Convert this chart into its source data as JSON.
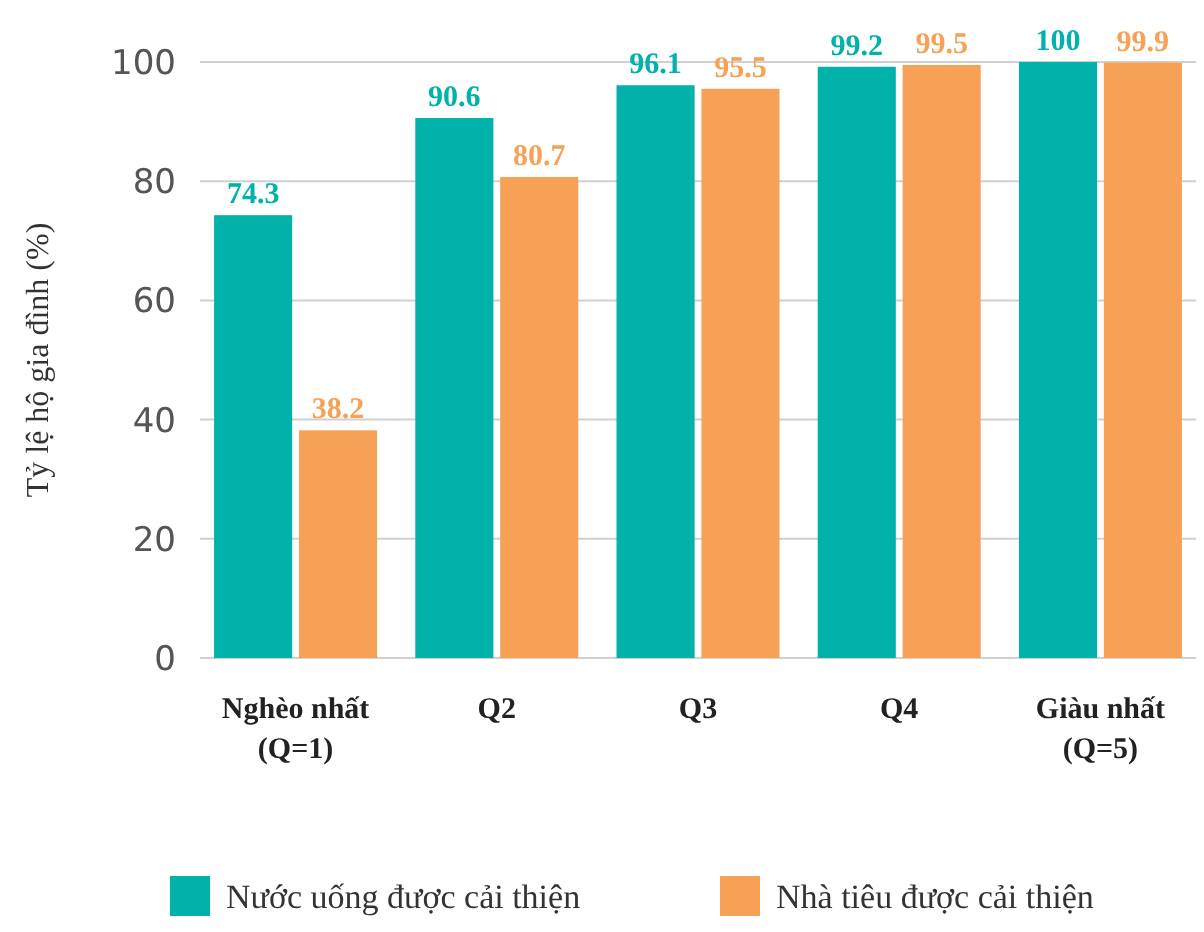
{
  "chart_data": {
    "type": "bar",
    "ylabel": "Tỷ lệ hộ gia đình (%)",
    "categories": [
      "Nghèo nhất\n(Q=1)",
      "Q2",
      "Q3",
      "Q4",
      "Giàu nhất\n(Q=5)"
    ],
    "series": [
      {
        "name": "Nước uống được cải thiện",
        "color": "#00b2a9",
        "values": [
          74.3,
          90.6,
          96.1,
          99.2,
          100
        ]
      },
      {
        "name": "Nhà tiêu được cải thiện",
        "color": "#f6a155",
        "values": [
          38.2,
          80.7,
          95.5,
          99.5,
          99.9
        ]
      }
    ],
    "ylim": [
      0,
      100
    ],
    "yticks": [
      0,
      20,
      40,
      60,
      80,
      100
    ],
    "grid": "y",
    "data_labels": true,
    "legend": "bottom"
  }
}
